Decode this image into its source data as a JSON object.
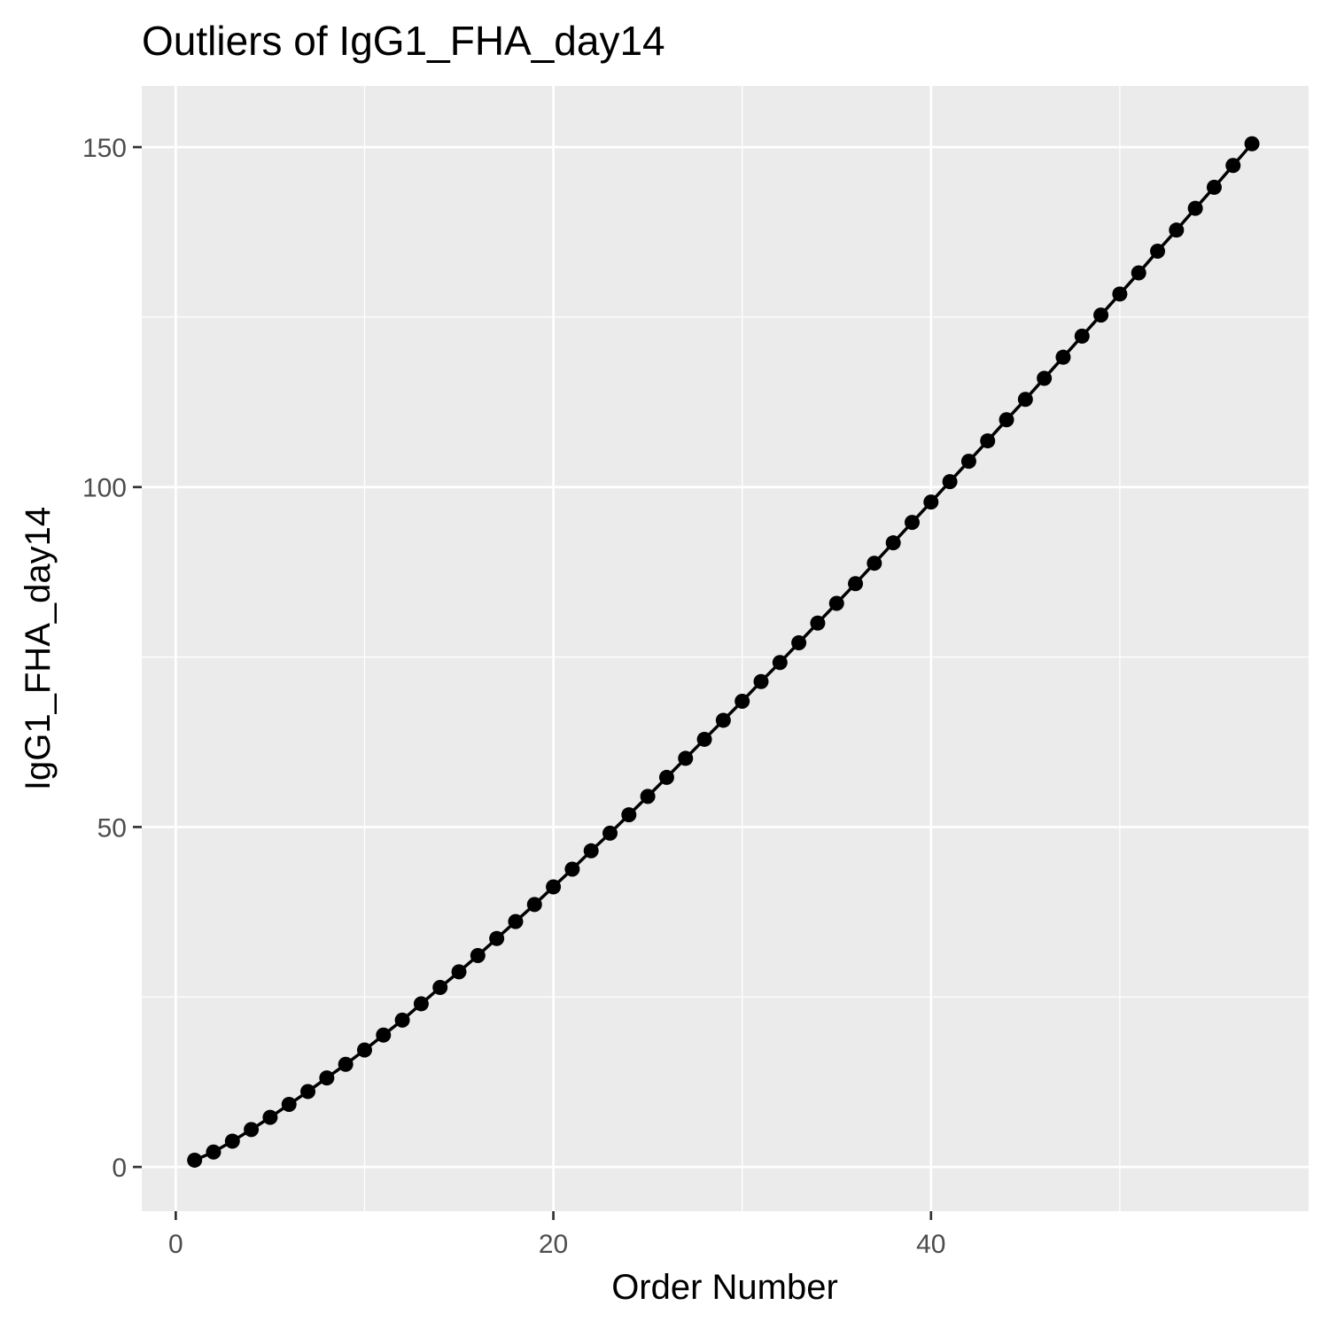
{
  "chart_data": {
    "type": "line",
    "title": "Outliers of IgG1_FHA_day14",
    "xlabel": "Order Number",
    "ylabel": "IgG1_FHA_day14",
    "xlim": [
      -1.8,
      60
    ],
    "ylim": [
      -6.5,
      159
    ],
    "x_ticks": [
      0,
      20,
      40
    ],
    "x_tick_labels": [
      "0",
      "20",
      "40"
    ],
    "x_minor_ticks": [
      10,
      30,
      50
    ],
    "y_ticks": [
      0,
      50,
      100,
      150
    ],
    "y_tick_labels": [
      "0",
      "50",
      "100",
      "150"
    ],
    "y_minor_ticks": [
      25,
      75,
      125
    ],
    "grid": true,
    "legend": "none",
    "colors": {
      "panel": "#ebebeb",
      "grid": "#ffffff",
      "series": "#000000",
      "tick_text": "#4d4d4d",
      "tick_mark": "#333333"
    },
    "series": [
      {
        "x": [
          1,
          2,
          3,
          4,
          5,
          6,
          7,
          8,
          9,
          10,
          11,
          12,
          13,
          14,
          15,
          16,
          17,
          18,
          19,
          20,
          21,
          22,
          23,
          24,
          25,
          26,
          27,
          28,
          29,
          30,
          31,
          32,
          33,
          34,
          35,
          36,
          37,
          38,
          39,
          40,
          41,
          42,
          43,
          44,
          45,
          46,
          47,
          48,
          49,
          50,
          51,
          52,
          53,
          54,
          55,
          56,
          57
        ],
        "values": [
          1.0,
          2.2,
          3.8,
          5.5,
          7.3,
          9.2,
          11.1,
          13.1,
          15.1,
          17.2,
          19.4,
          21.6,
          24.0,
          26.4,
          28.7,
          31.1,
          33.6,
          36.1,
          38.6,
          41.2,
          43.8,
          46.5,
          49.1,
          51.8,
          54.5,
          57.3,
          60.1,
          62.9,
          65.7,
          68.5,
          71.4,
          74.2,
          77.1,
          80.0,
          82.9,
          85.8,
          88.8,
          91.8,
          94.8,
          97.8,
          100.8,
          103.8,
          106.8,
          109.9,
          112.9,
          116.0,
          119.1,
          122.2,
          125.3,
          128.4,
          131.5,
          134.7,
          137.8,
          141.0,
          144.1,
          147.3,
          150.5
        ]
      }
    ]
  }
}
